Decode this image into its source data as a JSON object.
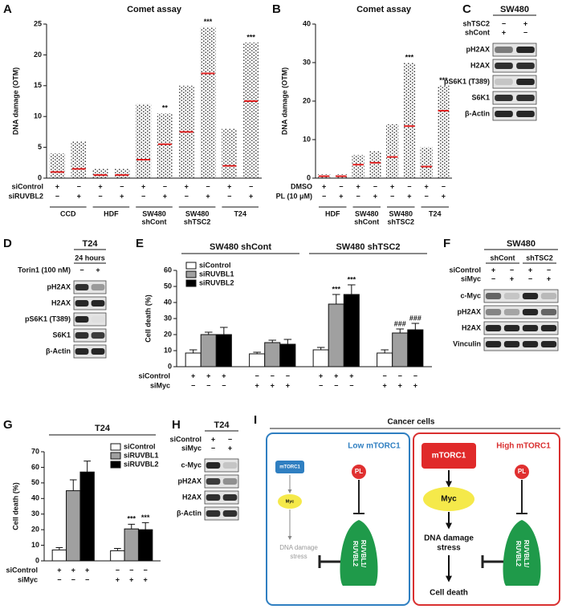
{
  "panels": [
    {
      "type": "scatter",
      "letter": "A",
      "title": "Comet assay",
      "y_label": "DNA damage (OTM)",
      "ylim": [
        0,
        25
      ],
      "yticks": [
        0,
        5,
        10,
        15,
        20,
        25
      ],
      "dot_color": "#333333",
      "mean_color": "#e02020",
      "groups": [
        {
          "label": [
            "CCD"
          ],
          "means": [
            1,
            1.5
          ],
          "maxes": [
            4,
            6
          ],
          "marks": [
            null,
            null
          ]
        },
        {
          "label": [
            "HDF"
          ],
          "means": [
            0.5,
            0.5
          ],
          "maxes": [
            1.5,
            1.5
          ],
          "marks": [
            null,
            null
          ]
        },
        {
          "label": [
            "SW480",
            "shCont"
          ],
          "means": [
            3,
            5.5
          ],
          "maxes": [
            12,
            10.5
          ],
          "marks": [
            null,
            "**"
          ]
        },
        {
          "label": [
            "SW480",
            "shTSC2"
          ],
          "means": [
            7.5,
            17
          ],
          "maxes": [
            15,
            24.5
          ],
          "marks": [
            null,
            "***"
          ]
        },
        {
          "label": [
            "T24"
          ],
          "means": [
            2,
            12.5
          ],
          "maxes": [
            8,
            22
          ],
          "marks": [
            null,
            "***"
          ]
        }
      ],
      "conditions": [
        {
          "label": "siControl",
          "signs": [
            "+",
            "−",
            "+",
            "−",
            "+",
            "−",
            "+",
            "−",
            "+",
            "−"
          ]
        },
        {
          "label": "siRUVBL2",
          "signs": [
            "−",
            "+",
            "−",
            "+",
            "−",
            "+",
            "−",
            "+",
            "−",
            "+"
          ]
        }
      ]
    },
    {
      "type": "scatter",
      "letter": "B",
      "title": "Comet assay",
      "y_label": "DNA damage (OTM)",
      "ylim": [
        0,
        40
      ],
      "yticks": [
        0,
        10,
        20,
        30,
        40
      ],
      "dot_color": "#333333",
      "mean_color": "#e02020",
      "groups": [
        {
          "label": [
            "HDF"
          ],
          "means": [
            0.5,
            0.5
          ],
          "maxes": [
            1,
            1
          ],
          "marks": [
            null,
            null
          ]
        },
        {
          "label": [
            "SW480",
            "shCont"
          ],
          "means": [
            3.5,
            4
          ],
          "maxes": [
            6,
            7
          ],
          "marks": [
            null,
            null
          ]
        },
        {
          "label": [
            "SW480",
            "shTSC2"
          ],
          "means": [
            5.5,
            13.5
          ],
          "maxes": [
            14,
            30
          ],
          "marks": [
            null,
            "***"
          ]
        },
        {
          "label": [
            "T24"
          ],
          "means": [
            3,
            17.5
          ],
          "maxes": [
            8,
            24
          ],
          "marks": [
            null,
            "***"
          ]
        }
      ],
      "conditions": [
        {
          "label": "DMSO",
          "signs": [
            "+",
            "−",
            "+",
            "−",
            "+",
            "−",
            "+",
            "−"
          ]
        },
        {
          "label": "PL (10 μM)",
          "signs": [
            "−",
            "+",
            "−",
            "+",
            "−",
            "+",
            "−",
            "+"
          ]
        }
      ]
    },
    {
      "type": "blot",
      "letter": "C",
      "title": "SW480",
      "conditions": [
        {
          "label": "shTSC2",
          "signs": [
            "−",
            "+"
          ]
        },
        {
          "label": "shCont",
          "signs": [
            "+",
            "−"
          ]
        }
      ],
      "bands": [
        {
          "label": "pH2AX",
          "levels": [
            0.5,
            0.9
          ]
        },
        {
          "label": "H2AX",
          "levels": [
            0.85,
            0.85
          ]
        },
        {
          "label": "pS6K1 (T389)",
          "levels": [
            0.15,
            0.9
          ]
        },
        {
          "label": "S6K1",
          "levels": [
            0.85,
            0.85
          ]
        },
        {
          "label": "β-Actin",
          "levels": [
            0.9,
            0.9
          ]
        }
      ]
    },
    {
      "type": "blot",
      "letter": "D",
      "title": "T24",
      "subtitle": "24 hours",
      "conditions": [
        {
          "label": "Torin1 (100 nM)",
          "signs": [
            "−",
            "+"
          ]
        }
      ],
      "bands": [
        {
          "label": "pH2AX",
          "levels": [
            0.85,
            0.35
          ]
        },
        {
          "label": "H2AX",
          "levels": [
            0.9,
            0.9
          ]
        },
        {
          "label": "pS6K1 (T389)",
          "levels": [
            0.9,
            0.02
          ]
        },
        {
          "label": "S6K1",
          "levels": [
            0.85,
            0.8
          ]
        },
        {
          "label": "β-Actin",
          "levels": [
            0.9,
            0.9
          ]
        }
      ]
    },
    {
      "type": "bar",
      "letter": "E",
      "headers": [
        "SW480 shCont",
        "SW480 shTSC2"
      ],
      "y_label": "Cell death (%)",
      "ylim": [
        0,
        60
      ],
      "yticks": [
        0,
        10,
        20,
        30,
        40,
        50,
        60
      ],
      "legend": "upper left",
      "series": [
        {
          "name": "siControl",
          "color": "#ffffff",
          "values": [
            8.5,
            8,
            10.5,
            8.5
          ],
          "errors": [
            2,
            1,
            1.5,
            2
          ],
          "marks": [
            null,
            null,
            null,
            null
          ]
        },
        {
          "name": "siRUVBL1",
          "color": "#a0a0a0",
          "values": [
            20,
            15,
            39,
            21
          ],
          "errors": [
            1.5,
            1.5,
            6,
            2.5
          ],
          "marks": [
            null,
            null,
            "***",
            "###"
          ]
        },
        {
          "name": "siRUVBL2",
          "color": "#000000",
          "values": [
            20,
            14,
            45,
            23
          ],
          "errors": [
            4.5,
            3,
            6,
            4
          ],
          "marks": [
            null,
            null,
            "***",
            "###"
          ]
        }
      ],
      "conditions": [
        {
          "label": "siControl",
          "signs": [
            "+",
            "+",
            "+",
            "−",
            "−",
            "−",
            "+",
            "+",
            "+",
            "−",
            "−",
            "−"
          ]
        },
        {
          "label": "siMyc",
          "signs": [
            "−",
            "−",
            "−",
            "+",
            "+",
            "+",
            "−",
            "−",
            "−",
            "+",
            "+",
            "+"
          ]
        }
      ]
    },
    {
      "type": "blot",
      "letter": "F",
      "title": "SW480",
      "subheaders": [
        "shCont",
        "shTSC2"
      ],
      "conditions": [
        {
          "label": "siControl",
          "signs": [
            "+",
            "−",
            "+",
            "−"
          ]
        },
        {
          "label": "siMyc",
          "signs": [
            "−",
            "+",
            "−",
            "+"
          ]
        }
      ],
      "bands": [
        {
          "label": "c-Myc",
          "levels": [
            0.6,
            0.15,
            0.9,
            0.2
          ]
        },
        {
          "label": "pH2AX",
          "levels": [
            0.45,
            0.3,
            0.9,
            0.6
          ]
        },
        {
          "label": "H2AX",
          "levels": [
            0.9,
            0.9,
            0.9,
            0.9
          ]
        },
        {
          "label": "Vinculin",
          "levels": [
            0.9,
            0.9,
            0.9,
            0.9
          ]
        }
      ]
    },
    {
      "type": "bar",
      "letter": "G",
      "headers": [
        "T24"
      ],
      "y_label": "Cell death (%)",
      "ylim": [
        0,
        70
      ],
      "yticks": [
        0,
        10,
        20,
        30,
        40,
        50,
        60,
        70
      ],
      "legend": "upper right",
      "series": [
        {
          "name": "siControl",
          "color": "#ffffff",
          "values": [
            7,
            6.5
          ],
          "errors": [
            1.5,
            1.5
          ],
          "marks": [
            null,
            null
          ]
        },
        {
          "name": "siRUVBL1",
          "color": "#a0a0a0",
          "values": [
            45,
            20.5
          ],
          "errors": [
            7,
            3
          ],
          "marks": [
            null,
            "***"
          ]
        },
        {
          "name": "siRUVBL2",
          "color": "#000000",
          "values": [
            57,
            20
          ],
          "errors": [
            7,
            4.5
          ],
          "marks": [
            null,
            "***"
          ]
        }
      ],
      "conditions": [
        {
          "label": "siControl",
          "signs": [
            "+",
            "+",
            "+",
            "−",
            "−",
            "−"
          ]
        },
        {
          "label": "siMyc",
          "signs": [
            "−",
            "−",
            "−",
            "+",
            "+",
            "+"
          ]
        }
      ]
    },
    {
      "type": "blot",
      "letter": "H",
      "title": "T24",
      "conditions": [
        {
          "label": "siControl",
          "signs": [
            "+",
            "−"
          ]
        },
        {
          "label": "siMyc",
          "signs": [
            "−",
            "+"
          ]
        }
      ],
      "bands": [
        {
          "label": "c-Myc",
          "levels": [
            0.9,
            0.15
          ]
        },
        {
          "label": "pH2AX",
          "levels": [
            0.8,
            0.4
          ]
        },
        {
          "label": "H2AX",
          "levels": [
            0.85,
            0.85
          ]
        },
        {
          "label": "β-Actin",
          "levels": [
            0.85,
            0.85
          ]
        }
      ]
    },
    {
      "type": "diagram",
      "letter": "I",
      "title": "Cancer cells",
      "left": {
        "title": "Low mTORC1",
        "mtorc1": "mTORC1",
        "myc": "Myc",
        "damage": [
          "DNA damage",
          "stress"
        ],
        "pl": "PL",
        "ruvbl": [
          "RUVBL1/",
          "RUVBL2"
        ]
      },
      "right": {
        "title": "High mTORC1",
        "mtorc1": "mTORC1",
        "myc": "Myc",
        "damage": [
          "DNA damage",
          "stress"
        ],
        "death": "Cell death",
        "pl": "PL",
        "ruvbl": [
          "RUVBL1/",
          "RUVBL2"
        ]
      }
    }
  ]
}
